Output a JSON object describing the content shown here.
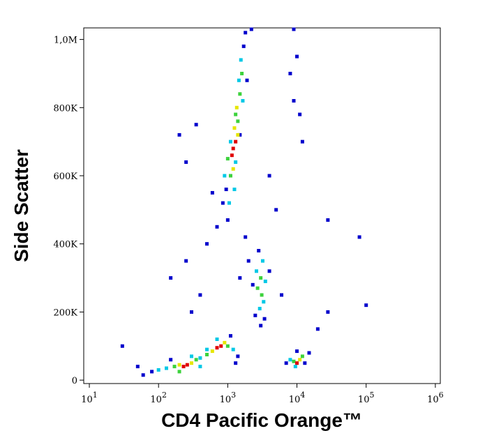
{
  "chart_data": {
    "type": "scatter",
    "x_label": "CD4 Pacific Orange™",
    "y_label": "Side Scatter",
    "x_log": true,
    "xlim": [
      8.3,
      1180000
    ],
    "xticks": [
      {
        "value": 10,
        "label": "10",
        "exponent": "1"
      },
      {
        "value": 100,
        "label": "10",
        "exponent": "2"
      },
      {
        "value": 1000,
        "label": "10",
        "exponent": "3"
      },
      {
        "value": 10000,
        "label": "10",
        "exponent": "4"
      },
      {
        "value": 100000,
        "label": "10",
        "exponent": "5"
      },
      {
        "value": 1000000,
        "label": "10",
        "exponent": "6"
      }
    ],
    "ylim": [
      -10000,
      1034000
    ],
    "yticks": [
      0,
      {
        "value": 200000,
        "label": "200K"
      },
      {
        "value": 400000,
        "label": "400K"
      },
      {
        "value": 600000,
        "label": "600K"
      },
      {
        "value": 800000,
        "label": "800K"
      },
      {
        "value": 1000000,
        "label": "1,0M"
      }
    ],
    "x": [
      1000,
      1050,
      950,
      1100,
      1200,
      1150,
      1300,
      1250,
      1400,
      1350,
      1500,
      1450,
      1600,
      1550,
      1700,
      1800,
      900,
      1300,
      1500,
      1100,
      1650,
      1250,
      1200,
      1400,
      1300,
      850,
      1900,
      1000,
      2200,
      9000,
      10000,
      8000,
      11000,
      12000,
      9000,
      2800,
      3200,
      2600,
      3000,
      3500,
      2700,
      3100,
      3300,
      2900,
      2500,
      3400,
      3000,
      4000,
      2300,
      2000,
      1800,
      60,
      80,
      100,
      130,
      170,
      200,
      230,
      260,
      300,
      350,
      400,
      500,
      600,
      700,
      800,
      900,
      1000,
      1200,
      1400,
      700,
      500,
      300,
      200,
      400,
      150,
      1100,
      50,
      1300,
      7000,
      8000,
      9000,
      10000,
      11000,
      12000,
      9500,
      13000,
      10000,
      15000,
      30,
      200,
      250,
      350,
      150,
      250,
      400,
      300,
      700,
      600,
      28000,
      28000,
      80000,
      100000,
      20000,
      5000,
      4000,
      500,
      1500,
      6000
    ],
    "values": [
      470000,
      520000,
      560000,
      600000,
      620000,
      660000,
      700000,
      740000,
      760000,
      800000,
      840000,
      880000,
      900000,
      940000,
      980000,
      1020000,
      600000,
      640000,
      720000,
      700000,
      820000,
      560000,
      680000,
      720000,
      780000,
      520000,
      880000,
      650000,
      1030000,
      1030000,
      950000,
      900000,
      780000,
      700000,
      820000,
      380000,
      350000,
      320000,
      300000,
      290000,
      270000,
      250000,
      230000,
      210000,
      190000,
      180000,
      160000,
      320000,
      280000,
      350000,
      420000,
      15000,
      25000,
      30000,
      35000,
      40000,
      45000,
      40000,
      45000,
      50000,
      60000,
      65000,
      75000,
      85000,
      95000,
      100000,
      110000,
      100000,
      90000,
      70000,
      120000,
      90000,
      70000,
      25000,
      40000,
      60000,
      130000,
      40000,
      50000,
      50000,
      60000,
      55000,
      50000,
      60000,
      70000,
      40000,
      50000,
      85000,
      80000,
      100000,
      720000,
      640000,
      750000,
      300000,
      350000,
      250000,
      200000,
      450000,
      550000,
      200000,
      470000,
      420000,
      220000,
      150000,
      500000,
      600000,
      400000,
      300000,
      250000
    ],
    "colors": [
      "#0000cc",
      "#00c8e6",
      "#0000cc",
      "#3cd23c",
      "#e6e600",
      "#e00000",
      "#e00000",
      "#e6e600",
      "#3cd23c",
      "#e6e600",
      "#3cd23c",
      "#00c8e6",
      "#3cd23c",
      "#00c8e6",
      "#0000cc",
      "#0000cc",
      "#00c8e6",
      "#00c8e6",
      "#0000cc",
      "#00c8e6",
      "#00c8e6",
      "#00c8e6",
      "#e00000",
      "#e6e600",
      "#3cd23c",
      "#0000cc",
      "#0000cc",
      "#3cd23c",
      "#0000cc",
      "#0000cc",
      "#0000cc",
      "#0000cc",
      "#0000cc",
      "#0000cc",
      "#0000cc",
      "#0000cc",
      "#00c8e6",
      "#00c8e6",
      "#3cd23c",
      "#00c8e6",
      "#3cd23c",
      "#3cd23c",
      "#00c8e6",
      "#00c8e6",
      "#0000cc",
      "#0000cc",
      "#0000cc",
      "#0000cc",
      "#0000cc",
      "#0000cc",
      "#0000cc",
      "#0000cc",
      "#0000cc",
      "#00c8e6",
      "#00c8e6",
      "#3cd23c",
      "#e6e600",
      "#e00000",
      "#e00000",
      "#e6e600",
      "#3cd23c",
      "#00c8e6",
      "#3cd23c",
      "#e6e600",
      "#e00000",
      "#e00000",
      "#e6e600",
      "#3cd23c",
      "#00c8e6",
      "#0000cc",
      "#00c8e6",
      "#00c8e6",
      "#00c8e6",
      "#3cd23c",
      "#00c8e6",
      "#0000cc",
      "#0000cc",
      "#0000cc",
      "#0000cc",
      "#0000cc",
      "#00c8e6",
      "#3cd23c",
      "#e00000",
      "#e6e600",
      "#3cd23c",
      "#00c8e6",
      "#0000cc",
      "#0000cc",
      "#0000cc",
      "#0000cc",
      "#0000cc",
      "#0000cc",
      "#0000cc",
      "#0000cc",
      "#0000cc",
      "#0000cc",
      "#0000cc",
      "#0000cc",
      "#0000cc",
      "#0000cc",
      "#0000cc",
      "#0000cc",
      "#0000cc",
      "#0000cc",
      "#0000cc",
      "#0000cc",
      "#0000cc",
      "#0000cc",
      "#0000cc"
    ]
  }
}
